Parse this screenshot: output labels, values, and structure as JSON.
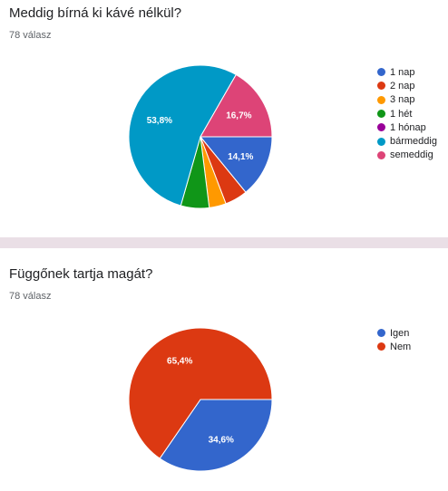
{
  "charts": [
    {
      "title": "Meddig bírná ki kávé nélkül?",
      "responses": "78 válasz"
    },
    {
      "title": "Függőnek tartja magát?",
      "responses": "78 válasz"
    }
  ],
  "chart_data": [
    {
      "type": "pie",
      "title": "Meddig bírná ki kávé nélkül?",
      "categories": [
        "1 nap",
        "2 nap",
        "3 nap",
        "1 hét",
        "1 hónap",
        "bármeddig",
        "semeddig"
      ],
      "values": [
        14.1,
        5.1,
        3.8,
        6.4,
        0,
        53.8,
        16.7
      ],
      "slice_labels": [
        "14,1%",
        "",
        "",
        "",
        "",
        "53,8%",
        "16,7%"
      ],
      "colors": [
        "#3366cc",
        "#dc3912",
        "#ff9900",
        "#109618",
        "#990099",
        "#0099c6",
        "#dd4477"
      ],
      "legend_position": "right"
    },
    {
      "type": "pie",
      "title": "Függőnek tartja magát?",
      "categories": [
        "Igen",
        "Nem"
      ],
      "values": [
        34.6,
        65.4
      ],
      "slice_labels": [
        "34,6%",
        "65,4%"
      ],
      "colors": [
        "#3366cc",
        "#dc3912"
      ],
      "legend_position": "right"
    }
  ]
}
